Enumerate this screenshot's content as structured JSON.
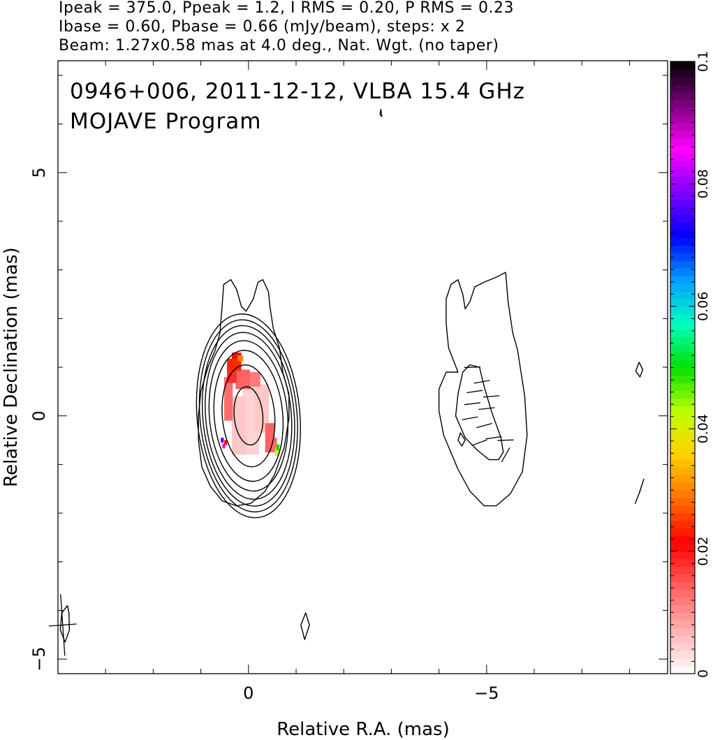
{
  "header": {
    "line1": "Ipeak = 375.0, Ppeak = 1.2, I RMS = 0.20, P RMS = 0.23",
    "line2": "Ibase = 0.60, Pbase = 0.66 (mJy/beam), steps: x 2",
    "line3": "Beam: 1.27x0.58 mas at 4.0 deg., Nat. Wgt. (no taper)"
  },
  "chart_data": {
    "type": "heatmap",
    "title": "0946+006, 2011-12-12, VLBA 15.4 GHz",
    "subtitle": "MOJAVE Program",
    "xlabel": "Relative R.A. (mas)",
    "ylabel": "Relative Declination (mas)",
    "xlim": [
      4.0,
      -8.8
    ],
    "ylim": [
      -5.3,
      7.3
    ],
    "x_ticks": [
      0,
      -5
    ],
    "y_ticks": [
      -5,
      0,
      5
    ],
    "x_tick_labels": [
      "0",
      "−5"
    ],
    "y_tick_labels": [
      "−5",
      "0",
      "5"
    ],
    "colorbar": {
      "range": [
        0,
        0.1
      ],
      "ticks": [
        0,
        0.02,
        0.04,
        0.06,
        0.08,
        0.1
      ],
      "tick_labels": [
        "0",
        "0.02",
        "0.04",
        "0.06",
        "0.08",
        "0.1"
      ],
      "colors": [
        "#ffffff",
        "#ffb0b0",
        "#ff6060",
        "#ff0000",
        "#ff7000",
        "#ffd000",
        "#c0ff00",
        "#00e000",
        "#00ffc0",
        "#00a0ff",
        "#0000ff",
        "#8000ff",
        "#ff00ff",
        "#800080",
        "#000000"
      ]
    },
    "beam": {
      "major_mas": 1.27,
      "minor_mas": 0.58,
      "pa_deg": 4.0,
      "center": [
        3.9,
        -4.3
      ]
    },
    "contour_levels_mJy": [
      0.6,
      1.2,
      2.4,
      4.8,
      9.6,
      19.2,
      38.4,
      76.8,
      153.6,
      307.2
    ],
    "main_core": {
      "center": [
        0.0,
        0.0
      ],
      "pa_deg": 5,
      "inner_contours": [
        [
          0.3,
          0.6
        ],
        [
          0.55,
          1.05
        ],
        [
          0.72,
          1.35
        ],
        [
          0.82,
          1.55
        ],
        [
          0.9,
          1.72
        ],
        [
          0.96,
          1.86
        ],
        [
          1.02,
          1.98
        ],
        [
          1.08,
          2.1
        ]
      ]
    },
    "outer_contours": [
      {
        "name": "core-outer",
        "points": [
          [
            -0.72,
            0.9
          ],
          [
            -0.65,
            1.4
          ],
          [
            -0.52,
            1.8
          ],
          [
            -0.45,
            2.25
          ],
          [
            -0.42,
            2.55
          ],
          [
            -0.3,
            2.8
          ],
          [
            -0.2,
            2.75
          ],
          [
            -0.1,
            2.4
          ],
          [
            0.05,
            2.15
          ],
          [
            0.15,
            2.25
          ],
          [
            0.25,
            2.6
          ],
          [
            0.37,
            2.8
          ],
          [
            0.52,
            2.7
          ],
          [
            0.55,
            2.3
          ],
          [
            0.6,
            1.7
          ],
          [
            0.7,
            1.35
          ],
          [
            0.85,
            1.0
          ],
          [
            1.0,
            0.5
          ],
          [
            1.05,
            0.0
          ],
          [
            1.05,
            -0.5
          ],
          [
            0.98,
            -1.05
          ],
          [
            0.8,
            -1.45
          ],
          [
            0.55,
            -1.75
          ],
          [
            0.25,
            -1.85
          ],
          [
            -0.05,
            -1.8
          ],
          [
            -0.35,
            -1.55
          ],
          [
            -0.55,
            -1.2
          ],
          [
            -0.75,
            -0.65
          ],
          [
            -0.85,
            -0.05
          ],
          [
            -0.85,
            0.45
          ]
        ]
      },
      {
        "name": "jet-outer",
        "points": [
          [
            -4.4,
            0.9
          ],
          [
            -4.2,
            1.4
          ],
          [
            -4.15,
            1.9
          ],
          [
            -4.15,
            2.4
          ],
          [
            -4.25,
            2.7
          ],
          [
            -4.4,
            2.8
          ],
          [
            -4.5,
            2.5
          ],
          [
            -4.55,
            2.2
          ],
          [
            -4.65,
            2.35
          ],
          [
            -4.75,
            2.65
          ],
          [
            -4.95,
            2.75
          ],
          [
            -5.2,
            2.85
          ],
          [
            -5.4,
            2.95
          ],
          [
            -5.45,
            2.35
          ],
          [
            -5.55,
            1.7
          ],
          [
            -5.65,
            1.35
          ],
          [
            -5.8,
            0.4
          ],
          [
            -5.85,
            -0.4
          ],
          [
            -5.75,
            -1.15
          ],
          [
            -5.5,
            -1.6
          ],
          [
            -5.2,
            -1.85
          ],
          [
            -4.95,
            -1.85
          ],
          [
            -4.65,
            -1.55
          ],
          [
            -4.4,
            -1.1
          ],
          [
            -4.1,
            -0.4
          ],
          [
            -4.0,
            0.1
          ],
          [
            -4.0,
            0.55
          ],
          [
            -4.15,
            0.9
          ]
        ]
      },
      {
        "name": "jet-inner",
        "points": [
          [
            -4.5,
            0.9
          ],
          [
            -4.4,
            0.45
          ],
          [
            -4.35,
            0.0
          ],
          [
            -4.55,
            -0.45
          ],
          [
            -4.8,
            -0.7
          ],
          [
            -5.05,
            -0.9
          ],
          [
            -5.25,
            -0.9
          ],
          [
            -5.35,
            -0.75
          ],
          [
            -5.3,
            -0.45
          ],
          [
            -5.1,
            0.1
          ],
          [
            -4.95,
            0.6
          ],
          [
            -4.85,
            1.0
          ],
          [
            -4.65,
            1.05
          ]
        ]
      },
      {
        "name": "jet-blob",
        "points": [
          [
            -4.45,
            -0.35
          ],
          [
            -4.55,
            -0.5
          ],
          [
            -4.48,
            -0.62
          ],
          [
            -4.4,
            -0.5
          ]
        ]
      },
      {
        "name": "blob-top",
        "points": [
          [
            -2.78,
            6.3
          ],
          [
            -2.8,
            6.15
          ],
          [
            -2.76,
            6.2
          ]
        ]
      },
      {
        "name": "blob-right-1",
        "points": [
          [
            -8.2,
            1.1
          ],
          [
            -8.28,
            0.95
          ],
          [
            -8.22,
            0.8
          ],
          [
            -8.13,
            0.92
          ]
        ]
      },
      {
        "name": "blob-right-2",
        "points": [
          [
            -8.3,
            -1.3
          ],
          [
            -8.22,
            -1.55
          ],
          [
            -8.12,
            -1.8
          ],
          [
            -8.2,
            -1.6
          ]
        ]
      },
      {
        "name": "blob-bottom-left",
        "points": [
          [
            3.8,
            -3.9
          ],
          [
            3.92,
            -4.05
          ],
          [
            3.95,
            -4.4
          ],
          [
            3.85,
            -4.65
          ],
          [
            3.76,
            -4.4
          ],
          [
            3.77,
            -4.05
          ]
        ]
      },
      {
        "name": "blob-bottom-mid",
        "points": [
          [
            -1.2,
            -4.05
          ],
          [
            -1.1,
            -4.3
          ],
          [
            -1.18,
            -4.6
          ],
          [
            -1.28,
            -4.3
          ]
        ]
      }
    ],
    "polarization_pixels": [
      {
        "x": -0.05,
        "y": 0.0,
        "w": 0.35,
        "h": 1.6,
        "value": 0.004
      },
      {
        "x": 0.2,
        "y": -0.2,
        "w": 0.3,
        "h": 1.2,
        "value": 0.005
      },
      {
        "x": -0.28,
        "y": 0.15,
        "w": 0.3,
        "h": 1.0,
        "value": 0.005
      },
      {
        "x": 0.0,
        "y": 0.75,
        "w": 0.5,
        "h": 0.3,
        "value": 0.012
      },
      {
        "x": 0.12,
        "y": 0.75,
        "w": 0.3,
        "h": 0.4,
        "value": 0.014
      },
      {
        "x": 0.42,
        "y": 0.35,
        "w": 0.18,
        "h": 0.9,
        "value": 0.013
      },
      {
        "x": 0.28,
        "y": 1.0,
        "w": 0.25,
        "h": 0.3,
        "value": 0.014
      },
      {
        "x": 0.35,
        "y": 0.85,
        "w": 0.2,
        "h": 0.35,
        "value": 0.018
      },
      {
        "x": 0.25,
        "y": 1.2,
        "w": 0.2,
        "h": 0.2,
        "value": 0.022
      },
      {
        "x": 0.3,
        "y": 1.05,
        "w": 0.3,
        "h": 0.25,
        "value": 0.024
      },
      {
        "x": 0.17,
        "y": 1.18,
        "w": 0.12,
        "h": 0.12,
        "value": 0.03
      },
      {
        "x": -0.45,
        "y": -0.45,
        "w": 0.2,
        "h": 0.6,
        "value": 0.014
      },
      {
        "x": -0.55,
        "y": -0.6,
        "w": 0.1,
        "h": 0.3,
        "value": 0.013
      },
      {
        "x": -0.6,
        "y": -0.75,
        "w": 0.08,
        "h": 0.15,
        "value": 0.04
      },
      {
        "x": -0.62,
        "y": -0.65,
        "w": 0.06,
        "h": 0.12,
        "value": 0.05
      },
      {
        "x": 0.55,
        "y": -0.5,
        "w": 0.06,
        "h": 0.1,
        "value": 0.075
      },
      {
        "x": 0.52,
        "y": -0.62,
        "w": 0.06,
        "h": 0.1,
        "value": 0.085
      },
      {
        "x": 0.48,
        "y": -0.55,
        "w": 0.06,
        "h": 0.1,
        "value": 0.022
      }
    ],
    "evpa_vectors": [
      {
        "x": -4.7,
        "y": 1.0,
        "pa_deg": 92
      },
      {
        "x": -4.9,
        "y": 0.7,
        "pa_deg": 100
      },
      {
        "x": -4.75,
        "y": 0.5,
        "pa_deg": 98
      },
      {
        "x": -5.1,
        "y": 0.4,
        "pa_deg": 95
      },
      {
        "x": -4.7,
        "y": 0.25,
        "pa_deg": 97
      },
      {
        "x": -5.0,
        "y": 0.15,
        "pa_deg": 96
      },
      {
        "x": -4.65,
        "y": -0.05,
        "pa_deg": 100
      },
      {
        "x": -4.95,
        "y": -0.2,
        "pa_deg": 105
      },
      {
        "x": -5.15,
        "y": -0.45,
        "pa_deg": 98
      },
      {
        "x": -5.4,
        "y": -0.5,
        "pa_deg": 92
      },
      {
        "x": -4.85,
        "y": -0.55,
        "pa_deg": 110
      },
      {
        "x": -5.4,
        "y": -0.8,
        "pa_deg": 150
      }
    ]
  }
}
